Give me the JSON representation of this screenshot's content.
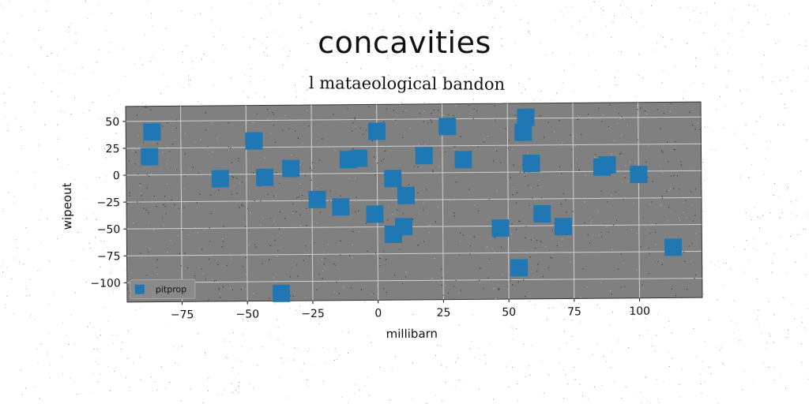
{
  "title": "concavities",
  "subtitle": "l mataeological bandon",
  "colors": {
    "background": "#ffffff",
    "plot_background": "#808080",
    "grid": "#d0d0d0",
    "marker": "#1f77b4"
  },
  "chart_data": {
    "type": "scatter",
    "title": "concavities",
    "subtitle": "l mataeological bandon",
    "xlabel": "millibarn",
    "ylabel": "wipeout",
    "xlim": [
      -96,
      124
    ],
    "ylim": [
      -118,
      64
    ],
    "xticks": [
      -75,
      -50,
      -25,
      0,
      25,
      50,
      75,
      100
    ],
    "yticks": [
      50,
      25,
      0,
      -25,
      -50,
      -75,
      -100
    ],
    "xtick_labels": [
      "−75",
      "−50",
      "−25",
      "0",
      "25",
      "50",
      "75",
      "100"
    ],
    "ytick_labels": [
      "50",
      "25",
      "0",
      "−25",
      "−50",
      "−75",
      "−100"
    ],
    "grid": true,
    "legend_position": "lower-left",
    "marker": "square",
    "series": [
      {
        "name": "pitprop",
        "color": "#1f77b4",
        "points": [
          {
            "x": -86,
            "y": 40
          },
          {
            "x": -87,
            "y": 17
          },
          {
            "x": -47,
            "y": 31
          },
          {
            "x": -60,
            "y": -4
          },
          {
            "x": -43,
            "y": -3
          },
          {
            "x": -33,
            "y": 5
          },
          {
            "x": -11,
            "y": 13
          },
          {
            "x": -7,
            "y": 14
          },
          {
            "x": 0,
            "y": 39
          },
          {
            "x": 27,
            "y": 43
          },
          {
            "x": 56,
            "y": 37
          },
          {
            "x": 57,
            "y": 51
          },
          {
            "x": 18,
            "y": 16
          },
          {
            "x": 33,
            "y": 12
          },
          {
            "x": 59,
            "y": 8
          },
          {
            "x": 86,
            "y": 4
          },
          {
            "x": 88,
            "y": 6
          },
          {
            "x": 100,
            "y": -3
          },
          {
            "x": 6,
            "y": -5
          },
          {
            "x": 11,
            "y": -21
          },
          {
            "x": -23,
            "y": -24
          },
          {
            "x": -14,
            "y": -31
          },
          {
            "x": -1,
            "y": -38
          },
          {
            "x": 6,
            "y": -57
          },
          {
            "x": 10,
            "y": -50
          },
          {
            "x": 47,
            "y": -52
          },
          {
            "x": 63,
            "y": -39
          },
          {
            "x": 71,
            "y": -51
          },
          {
            "x": 113,
            "y": -71
          },
          {
            "x": 54,
            "y": -89
          },
          {
            "x": -37,
            "y": -111
          }
        ]
      }
    ]
  }
}
